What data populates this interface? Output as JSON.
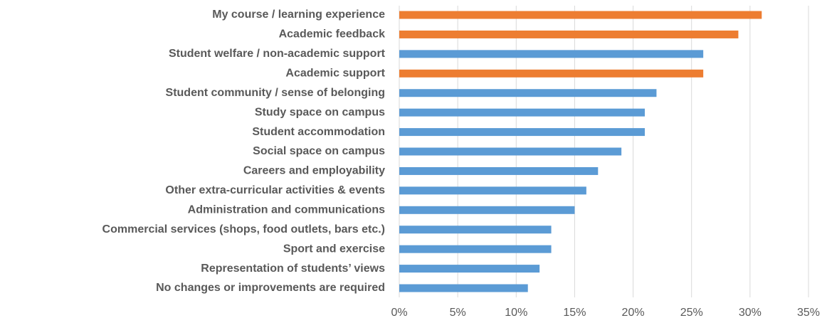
{
  "chart_data": {
    "type": "barh",
    "categories": [
      "My course / learning experience",
      "Academic feedback",
      "Student welfare / non-academic support",
      "Academic support",
      "Student community / sense of belonging",
      "Study space on campus",
      "Student accommodation",
      "Social space on campus",
      "Careers and employability",
      "Other extra-curricular activities & events",
      "Administration and communications",
      "Commercial services (shops, food outlets, bars etc.)",
      "Sport and exercise",
      "Representation of students’ views",
      "No changes or improvements are required"
    ],
    "values": [
      31,
      29,
      26,
      26,
      22,
      21,
      21,
      19,
      17,
      16,
      15,
      13,
      13,
      12,
      11
    ],
    "colors": [
      "#ed7d31",
      "#ed7d31",
      "#5b9bd5",
      "#ed7d31",
      "#5b9bd5",
      "#5b9bd5",
      "#5b9bd5",
      "#5b9bd5",
      "#5b9bd5",
      "#5b9bd5",
      "#5b9bd5",
      "#5b9bd5",
      "#5b9bd5",
      "#5b9bd5",
      "#5b9bd5"
    ],
    "xlim": [
      0,
      35
    ],
    "xticks": [
      {
        "value": 0,
        "label": "0%"
      },
      {
        "value": 5,
        "label": "5%"
      },
      {
        "value": 10,
        "label": "10%"
      },
      {
        "value": 15,
        "label": "15%"
      },
      {
        "value": 20,
        "label": "20%"
      },
      {
        "value": 25,
        "label": "25%"
      },
      {
        "value": 30,
        "label": "30%"
      },
      {
        "value": 35,
        "label": "35%"
      }
    ],
    "grid": true
  }
}
